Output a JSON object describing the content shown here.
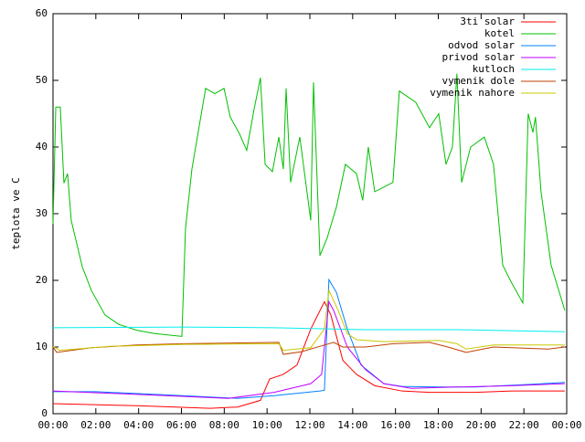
{
  "chart_data": {
    "type": "line",
    "y_label": "teplota ve C",
    "xlim": [
      0,
      24
    ],
    "xticks": [
      {
        "value": 0,
        "label": "00:00"
      },
      {
        "value": 2,
        "label": "02:00"
      },
      {
        "value": 4,
        "label": "04:00"
      },
      {
        "value": 6,
        "label": "06:00"
      },
      {
        "value": 8,
        "label": "08:00"
      },
      {
        "value": 10,
        "label": "10:00"
      },
      {
        "value": 12,
        "label": "12:00"
      },
      {
        "value": 14,
        "label": "14:00"
      },
      {
        "value": 16,
        "label": "16:00"
      },
      {
        "value": 18,
        "label": "18:00"
      },
      {
        "value": 20,
        "label": "20:00"
      },
      {
        "value": 22,
        "label": "22:00"
      },
      {
        "value": 24,
        "label": "00:00"
      }
    ],
    "ylim": [
      0,
      60
    ],
    "yticks": [
      0,
      10,
      20,
      30,
      40,
      50,
      60
    ],
    "legend": "top-right",
    "series": [
      {
        "name": "3ti solar",
        "color": "#ff0000",
        "x": [
          0,
          3.93,
          7.34,
          8.62,
          9.69,
          10.12,
          10.76,
          11.4,
          12.04,
          12.68,
          12.98,
          13.54,
          14.18,
          15.03,
          16.31,
          17.59,
          19.73,
          21.43,
          23.91
        ],
        "values": [
          1.5,
          1.2,
          0.8,
          1,
          2,
          5.2,
          5.9,
          7.3,
          12.7,
          16.8,
          14.8,
          8,
          5.9,
          4.2,
          3.4,
          3.2,
          3.2,
          3.4,
          3.4
        ]
      },
      {
        "name": "kotel",
        "color": "#00c000",
        "x": [
          0,
          0.13,
          0.34,
          0.51,
          0.68,
          0.85,
          1.37,
          1.79,
          2.43,
          3.07,
          3.93,
          4.78,
          6.02,
          6.19,
          6.49,
          7.13,
          7.56,
          7.99,
          8.28,
          8.71,
          9.05,
          9.39,
          9.69,
          9.91,
          10.25,
          10.55,
          10.76,
          10.89,
          11.1,
          11.53,
          12.04,
          12.17,
          12.47,
          12.81,
          13.24,
          13.66,
          14.18,
          14.47,
          14.73,
          15.03,
          15.46,
          15.88,
          16.18,
          16.95,
          17.59,
          18.02,
          18.36,
          18.66,
          18.87,
          19.09,
          19.51,
          20.15,
          20.58,
          21.01,
          21.43,
          21.95,
          22.2,
          22.42,
          22.54,
          22.8,
          23.27,
          23.91
        ],
        "values": [
          28.5,
          46,
          46,
          34.6,
          36,
          29,
          22,
          18.5,
          14.8,
          13.4,
          12.5,
          12,
          11.6,
          27.8,
          36.7,
          48.8,
          48,
          48.8,
          44.5,
          42,
          39.5,
          45.6,
          50.4,
          37.4,
          36.3,
          41.5,
          36.7,
          48.8,
          34.7,
          41.5,
          29,
          49.7,
          23.7,
          26.4,
          31,
          37.4,
          36,
          32,
          40,
          33.3,
          34,
          34.7,
          48.4,
          46.7,
          42.9,
          45,
          37.4,
          40,
          51,
          34.7,
          40,
          41.5,
          37.4,
          22.3,
          19.6,
          16.6,
          45,
          42.2,
          44.5,
          33.3,
          22.3,
          15.5
        ]
      },
      {
        "name": "odvod solar",
        "color": "#0080ff",
        "x": [
          0,
          2.01,
          6.06,
          8.62,
          10.33,
          12.47,
          12.68,
          12.89,
          13.24,
          13.75,
          14.39,
          15.46,
          16.31,
          18.02,
          19.73,
          22.29,
          23.91
        ],
        "values": [
          3.3,
          3.3,
          2.7,
          2.3,
          2.7,
          3.4,
          3.5,
          20.1,
          18.2,
          12.7,
          7.3,
          4.5,
          4.1,
          4,
          4,
          4.4,
          4.7
        ]
      },
      {
        "name": "privod solar",
        "color": "#c000ff",
        "x": [
          0,
          3.93,
          8.2,
          10.33,
          12.04,
          12.55,
          12.89,
          13.11,
          13.75,
          14.6,
          15.46,
          16.74,
          18.87,
          21.43,
          23.91
        ],
        "values": [
          3.4,
          2.9,
          2.3,
          3.2,
          4.5,
          5.9,
          16.8,
          15.5,
          10,
          6.6,
          4.5,
          3.8,
          4,
          4.2,
          4.5
        ]
      },
      {
        "name": "kutloch",
        "color": "#00eeee",
        "x": [
          0,
          6.06,
          10.33,
          14.6,
          18.87,
          23.91
        ],
        "values": [
          12.9,
          13,
          12.9,
          12.6,
          12.6,
          12.3
        ]
      },
      {
        "name": "vymenik dole",
        "color": "#c04000",
        "x": [
          0,
          0.17,
          1.79,
          3.93,
          6.06,
          10.55,
          10.76,
          11.61,
          12.68,
          13.11,
          13.54,
          14.6,
          15.88,
          17.59,
          18.45,
          19.3,
          20.58,
          23.14,
          23.91
        ],
        "values": [
          10,
          9.2,
          9.9,
          10.3,
          10.5,
          10.7,
          8.9,
          9.3,
          10.3,
          10.7,
          10,
          10,
          10.5,
          10.7,
          10,
          9.2,
          10,
          9.7,
          10
        ]
      },
      {
        "name": "vymenik nahore",
        "color": "#c8c800",
        "x": [
          0,
          0.3,
          2.65,
          6.06,
          10.55,
          10.76,
          12.04,
          12.68,
          12.89,
          13.32,
          13.75,
          14.18,
          15.46,
          18.02,
          18.87,
          19.3,
          20.58,
          23.91
        ],
        "values": [
          10.1,
          9.5,
          10.1,
          10.4,
          10.5,
          9.5,
          9.9,
          12.7,
          18.5,
          15.5,
          12,
          11.1,
          10.8,
          11,
          10.5,
          9.7,
          10.3,
          10.3
        ]
      }
    ]
  }
}
